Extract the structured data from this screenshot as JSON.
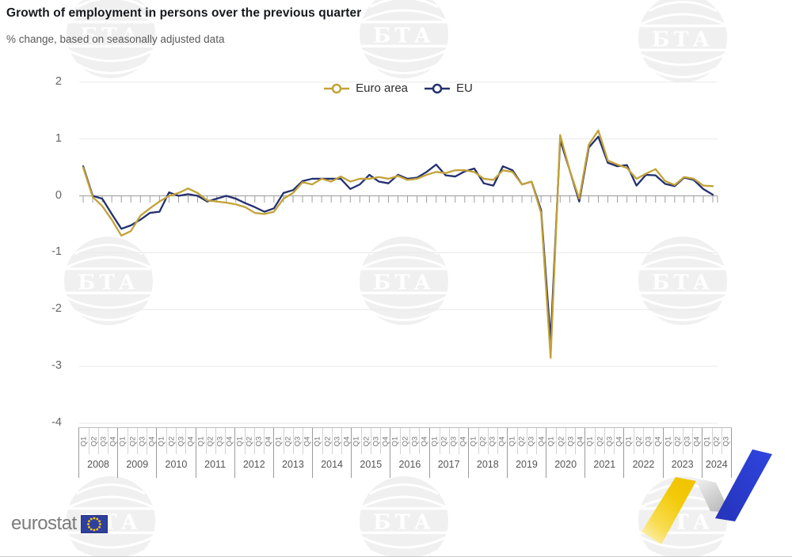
{
  "header": {
    "title": "Growth of employment in persons over the previous quarter",
    "subtitle": "% change, based on seasonally adjusted data"
  },
  "chart_data": {
    "type": "line",
    "title": "Growth of employment in persons over the previous quarter",
    "subtitle": "% change, based on seasonally adjusted data",
    "xlabel": "",
    "ylabel": "",
    "ylim": [
      -4,
      2
    ],
    "yticks": [
      2,
      1,
      0,
      -1,
      -2,
      -3,
      -4
    ],
    "grid": true,
    "legend_position": "top-center",
    "x_years": [
      {
        "year": "2008",
        "quarters": [
          "Q1",
          "Q2",
          "Q3",
          "Q4"
        ]
      },
      {
        "year": "2009",
        "quarters": [
          "Q1",
          "Q2",
          "Q3",
          "Q4"
        ]
      },
      {
        "year": "2010",
        "quarters": [
          "Q1",
          "Q2",
          "Q3",
          "Q4"
        ]
      },
      {
        "year": "2011",
        "quarters": [
          "Q1",
          "Q2",
          "Q3",
          "Q4"
        ]
      },
      {
        "year": "2012",
        "quarters": [
          "Q1",
          "Q2",
          "Q3",
          "Q4"
        ]
      },
      {
        "year": "2013",
        "quarters": [
          "Q1",
          "Q2",
          "Q3",
          "Q4"
        ]
      },
      {
        "year": "2014",
        "quarters": [
          "Q1",
          "Q2",
          "Q3",
          "Q4"
        ]
      },
      {
        "year": "2015",
        "quarters": [
          "Q1",
          "Q2",
          "Q3",
          "Q4"
        ]
      },
      {
        "year": "2016",
        "quarters": [
          "Q1",
          "Q2",
          "Q3",
          "Q4"
        ]
      },
      {
        "year": "2017",
        "quarters": [
          "Q1",
          "Q2",
          "Q3",
          "Q4"
        ]
      },
      {
        "year": "2018",
        "quarters": [
          "Q1",
          "Q2",
          "Q3",
          "Q4"
        ]
      },
      {
        "year": "2019",
        "quarters": [
          "Q1",
          "Q2",
          "Q3",
          "Q4"
        ]
      },
      {
        "year": "2020",
        "quarters": [
          "Q1",
          "Q2",
          "Q3",
          "Q4"
        ]
      },
      {
        "year": "2021",
        "quarters": [
          "Q1",
          "Q2",
          "Q3",
          "Q4"
        ]
      },
      {
        "year": "2022",
        "quarters": [
          "Q1",
          "Q2",
          "Q3",
          "Q4"
        ]
      },
      {
        "year": "2023",
        "quarters": [
          "Q1",
          "Q2",
          "Q3",
          "Q4"
        ]
      },
      {
        "year": "2024",
        "quarters": [
          "Q1",
          "Q2",
          "Q3"
        ]
      }
    ],
    "series": [
      {
        "name": "Euro area",
        "color": "#C3A237",
        "values": [
          0.5,
          -0.02,
          -0.18,
          -0.42,
          -0.7,
          -0.62,
          -0.35,
          -0.22,
          -0.1,
          0.0,
          0.05,
          0.13,
          0.05,
          -0.08,
          -0.1,
          -0.12,
          -0.15,
          -0.2,
          -0.3,
          -0.32,
          -0.28,
          -0.05,
          0.05,
          0.24,
          0.2,
          0.3,
          0.25,
          0.34,
          0.25,
          0.3,
          0.3,
          0.33,
          0.3,
          0.35,
          0.28,
          0.3,
          0.37,
          0.42,
          0.4,
          0.45,
          0.45,
          0.42,
          0.3,
          0.28,
          0.45,
          0.42,
          0.2,
          0.25,
          -0.3,
          -2.85,
          1.07,
          0.45,
          -0.05,
          0.9,
          1.15,
          0.62,
          0.55,
          0.49,
          0.3,
          0.39,
          0.47,
          0.26,
          0.19,
          0.33,
          0.3,
          0.18,
          0.17
        ]
      },
      {
        "name": "EU",
        "color": "#233071",
        "values": [
          0.52,
          0.0,
          -0.05,
          -0.32,
          -0.58,
          -0.52,
          -0.42,
          -0.3,
          -0.28,
          0.06,
          0.0,
          0.03,
          0.0,
          -0.1,
          -0.05,
          0.0,
          -0.05,
          -0.13,
          -0.2,
          -0.28,
          -0.22,
          0.05,
          0.1,
          0.26,
          0.3,
          0.3,
          0.3,
          0.3,
          0.12,
          0.2,
          0.37,
          0.25,
          0.22,
          0.37,
          0.3,
          0.32,
          0.42,
          0.55,
          0.36,
          0.34,
          0.43,
          0.48,
          0.22,
          0.18,
          0.52,
          0.45,
          0.2,
          0.25,
          -0.25,
          -2.55,
          0.98,
          0.45,
          -0.1,
          0.85,
          1.04,
          0.58,
          0.52,
          0.54,
          0.18,
          0.37,
          0.36,
          0.21,
          0.17,
          0.32,
          0.28,
          0.12,
          0.02
        ]
      }
    ]
  },
  "watermark": {
    "text": "БТА"
  },
  "footer": {
    "eurostat_label": "eurostat"
  },
  "colors": {
    "euro_area": "#C3A237",
    "eu": "#233071",
    "gridline": "#E9E9E9",
    "zero_line": "#A8A8A8",
    "tick": "#9E9E9E",
    "watermark_circle": "#F0F0F0",
    "bta_blue": "#2B3ECF",
    "bta_yellow": "#F2C600",
    "eu_flag_blue": "#2F3F9E",
    "eu_flag_star": "#FFCC00"
  }
}
